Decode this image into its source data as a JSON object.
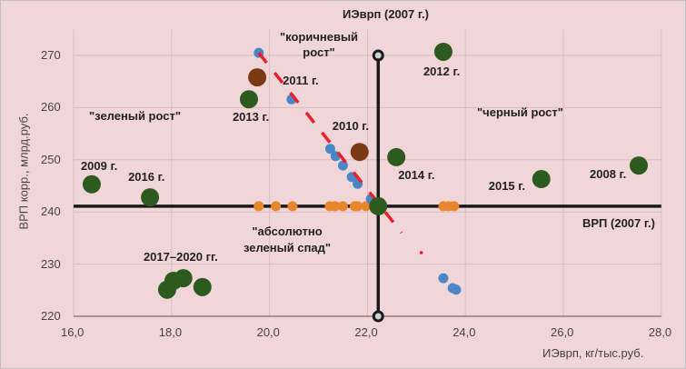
{
  "chart_data": {
    "type": "scatter",
    "xlabel": "ИЭврп, кг/тыс.руб.",
    "ylabel": "ВРП корр., млрд.руб.",
    "xlim": [
      16,
      28
    ],
    "ylim": [
      220,
      275
    ],
    "xticks": [
      "16,0",
      "18,0",
      "20,0",
      "22,0",
      "24,0",
      "26,0",
      "28,0"
    ],
    "xtick_values": [
      16,
      18,
      20,
      22,
      24,
      26,
      28
    ],
    "yticks": [
      "220",
      "230",
      "240",
      "250",
      "260",
      "270"
    ],
    "ytick_values": [
      220,
      230,
      240,
      250,
      260,
      270
    ],
    "grid": true,
    "reference": {
      "x": 22.22,
      "y": 241.1,
      "x_label": "ИЭврп (2007 г.)",
      "y_label": "ВРП (2007 г.)"
    },
    "quadrant_labels": [
      "\"зеленый рост\"",
      "\"коричневый рост\"",
      "\"черный рост\"",
      "\"абсолютно зеленый спад\""
    ],
    "series": [
      {
        "name": "green",
        "color": "#2d5a1e",
        "points": [
          {
            "x": 16.37,
            "y": 245.3,
            "label": "2009 г."
          },
          {
            "x": 17.56,
            "y": 242.8,
            "label": "2016 г."
          },
          {
            "x": 19.58,
            "y": 261.6,
            "label": "2013 г."
          },
          {
            "x": 23.55,
            "y": 270.7,
            "label": "2012 г."
          },
          {
            "x": 22.59,
            "y": 250.5,
            "label": "2014 г."
          },
          {
            "x": 25.55,
            "y": 246.3,
            "label": "2015 г."
          },
          {
            "x": 27.54,
            "y": 248.9,
            "label": "2008 г."
          },
          {
            "x": 22.22,
            "y": 241.1,
            "label": ""
          },
          {
            "x": 17.91,
            "y": 225.1,
            "label": "2017–2020 гг."
          },
          {
            "x": 18.04,
            "y": 226.8,
            "label": ""
          },
          {
            "x": 18.24,
            "y": 227.3,
            "label": ""
          },
          {
            "x": 18.63,
            "y": 225.6,
            "label": ""
          }
        ]
      },
      {
        "name": "brown",
        "color": "#7b3a14",
        "points": [
          {
            "x": 19.75,
            "y": 265.8,
            "label": "2011 г."
          },
          {
            "x": 21.84,
            "y": 251.5,
            "label": "2010 г."
          }
        ]
      },
      {
        "name": "blue",
        "color": "#4a86c8",
        "points": [
          {
            "x": 19.78,
            "y": 270.5
          },
          {
            "x": 20.45,
            "y": 261.6
          },
          {
            "x": 21.24,
            "y": 252.1
          },
          {
            "x": 21.35,
            "y": 250.7
          },
          {
            "x": 21.5,
            "y": 248.9
          },
          {
            "x": 21.68,
            "y": 246.7
          },
          {
            "x": 21.8,
            "y": 245.4
          },
          {
            "x": 22.07,
            "y": 242.5
          },
          {
            "x": 23.55,
            "y": 227.3
          },
          {
            "x": 23.74,
            "y": 225.4
          },
          {
            "x": 23.81,
            "y": 225.1
          }
        ]
      },
      {
        "name": "orange",
        "color": "#e8862e",
        "points": [
          {
            "x": 19.78,
            "y": 241.1
          },
          {
            "x": 20.13,
            "y": 241.1
          },
          {
            "x": 20.47,
            "y": 241.1
          },
          {
            "x": 21.23,
            "y": 241.1
          },
          {
            "x": 21.34,
            "y": 241.1
          },
          {
            "x": 21.5,
            "y": 241.1
          },
          {
            "x": 21.74,
            "y": 241.1
          },
          {
            "x": 21.8,
            "y": 241.1
          },
          {
            "x": 21.97,
            "y": 241.1
          },
          {
            "x": 23.55,
            "y": 241.1
          },
          {
            "x": 23.66,
            "y": 241.1
          },
          {
            "x": 23.77,
            "y": 241.1
          }
        ]
      },
      {
        "name": "trend",
        "color": "#e8202a",
        "type": "dashed-line",
        "points": [
          {
            "x": 19.78,
            "y": 270.5
          },
          {
            "x": 22.7,
            "y": 236.0
          },
          {
            "x": 23.1,
            "y": 232.2
          }
        ]
      }
    ]
  }
}
